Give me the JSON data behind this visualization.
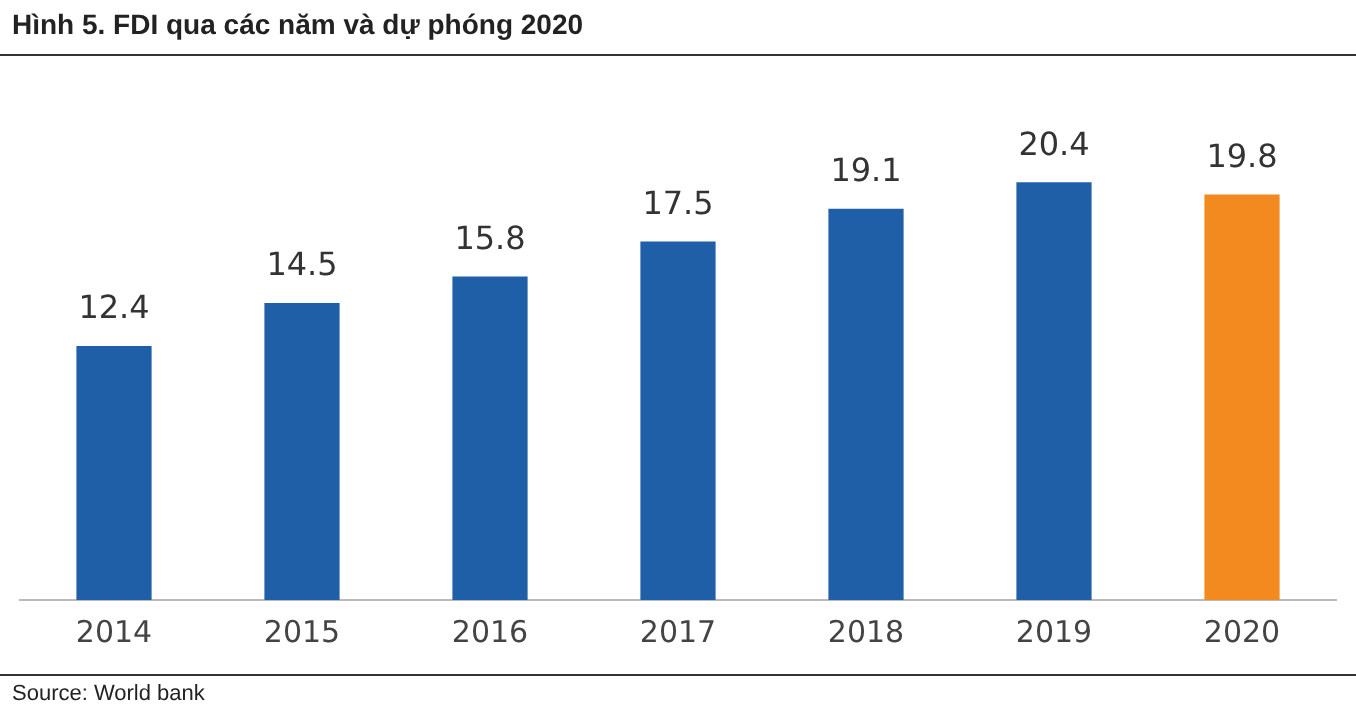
{
  "chart_data": {
    "type": "bar",
    "title": "Hình 5. FDI qua các năm và dự phóng 2020",
    "categories": [
      "2014",
      "2015",
      "2016",
      "2017",
      "2018",
      "2019",
      "2020"
    ],
    "values": [
      12.4,
      14.5,
      15.8,
      17.5,
      19.1,
      20.4,
      19.8
    ],
    "colors": [
      "#1f5fa8",
      "#1f5fa8",
      "#1f5fa8",
      "#1f5fa8",
      "#1f5fa8",
      "#1f5fa8",
      "#f28a1f"
    ],
    "data_labels": true,
    "grid": false,
    "legend": false,
    "annotations": [
      "Source: World bank"
    ]
  }
}
